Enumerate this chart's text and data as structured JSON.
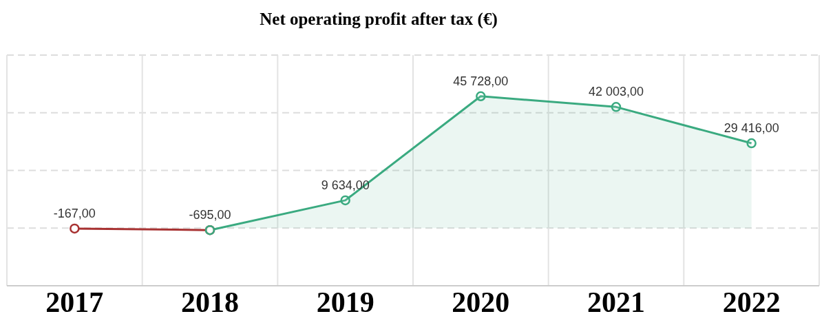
{
  "chart_data": {
    "type": "line",
    "title": "Net operating profit after tax (€)",
    "categories": [
      "2017",
      "2018",
      "2019",
      "2020",
      "2021",
      "2022"
    ],
    "series": [
      {
        "color": "#a83232",
        "values": [
          -167,
          -695,
          null,
          null,
          null,
          null
        ],
        "value_labels": [
          "-167,00",
          "-695,00",
          null,
          null,
          null,
          null
        ]
      },
      {
        "type": "area",
        "color": "#3aaa80",
        "values": [
          null,
          -695,
          9634,
          45728,
          42003,
          29416
        ],
        "value_labels": [
          null,
          null,
          "9 634,00",
          "45 728,00",
          "42 003,00",
          "29 416,00"
        ]
      }
    ],
    "ylim": [
      -20000,
      60000
    ],
    "yticks": [
      {
        "value": -20000,
        "label": null
      },
      {
        "value": 0,
        "label": null
      },
      {
        "value": 20000,
        "label": null
      },
      {
        "value": 40000,
        "label": null
      },
      {
        "value": 60000,
        "label": null
      }
    ],
    "grid": true,
    "marker": "circle",
    "line_style": "solid",
    "tick_labels": "x"
  }
}
